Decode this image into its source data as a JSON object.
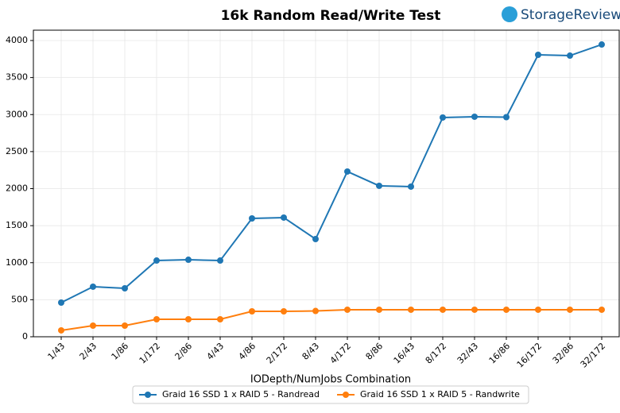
{
  "logo": "StorageReview",
  "chart_data": {
    "type": "line",
    "title": "16k Random Read/Write Test",
    "x_label": "IODepth/NumJobs Combination",
    "categories": [
      "1/43",
      "2/43",
      "1/86",
      "1/172",
      "2/86",
      "4/43",
      "4/86",
      "2/172",
      "8/43",
      "4/172",
      "8/86",
      "16/43",
      "8/172",
      "32/43",
      "16/86",
      "16/172",
      "32/86",
      "32/172"
    ],
    "series": [
      {
        "name": "Graid 16 SSD 1 x RAID 5 - Randread",
        "color": "#1f77b4",
        "values": [
          461,
          676,
          654,
          1029,
          1040,
          1029,
          1598,
          1609,
          1319,
          2231,
          2038,
          2027,
          2960,
          2971,
          2965,
          3807,
          3796,
          3946
        ]
      },
      {
        "name": "Graid 16 SSD 1 x RAID 5 - Randwrite",
        "color": "#ff7f0e",
        "values": [
          86,
          150,
          150,
          236,
          236,
          236,
          343,
          343,
          348,
          365,
          365,
          365,
          365,
          365,
          365,
          365,
          365,
          365
        ]
      }
    ],
    "ylim": [
      0,
      4000
    ],
    "yticks": [
      0,
      500,
      1000,
      1500,
      2000,
      2500,
      3000,
      3500,
      4000
    ],
    "grid": true,
    "legend": "bottom"
  }
}
